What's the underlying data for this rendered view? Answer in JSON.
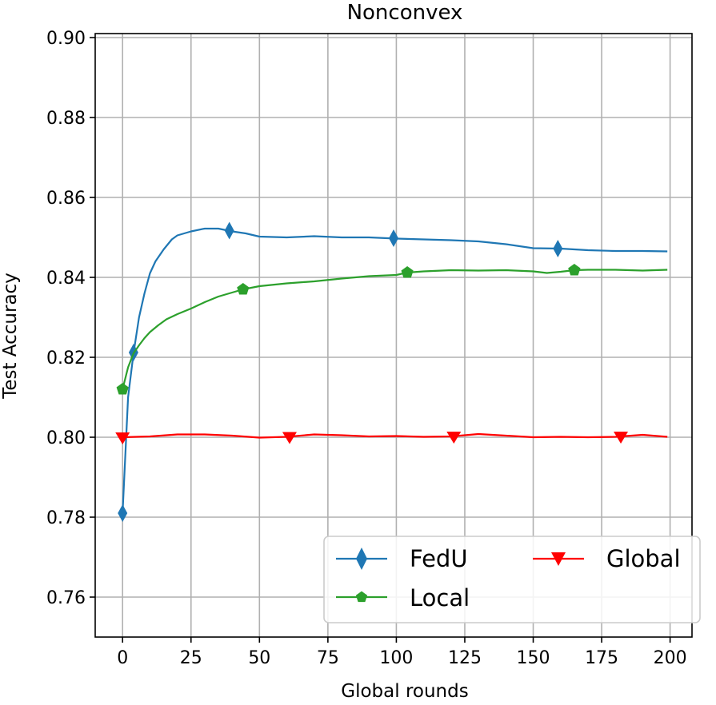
{
  "chart_data": {
    "type": "line",
    "title": "Nonconvex",
    "xlabel": "Global rounds",
    "ylabel": "Test Accuracy",
    "xlim": [
      -10,
      208
    ],
    "ylim": [
      0.75,
      0.901
    ],
    "xticks": [
      0,
      25,
      50,
      75,
      100,
      125,
      150,
      175,
      200
    ],
    "yticks": [
      0.76,
      0.78,
      0.8,
      0.82,
      0.84,
      0.86,
      0.88,
      0.9
    ],
    "xtick_labels": [
      "0",
      "25",
      "50",
      "75",
      "100",
      "125",
      "150",
      "175",
      "200"
    ],
    "ytick_labels": [
      "0.76",
      "0.78",
      "0.80",
      "0.82",
      "0.84",
      "0.86",
      "0.88",
      "0.90"
    ],
    "grid": true,
    "legend_position": "lower-right",
    "series": [
      {
        "name": "FedU",
        "color": "#1f77b4",
        "marker": "thin-diamond",
        "x": [
          0,
          2,
          4,
          6,
          8,
          10,
          12,
          15,
          18,
          20,
          25,
          30,
          35,
          40,
          45,
          50,
          60,
          70,
          80,
          90,
          100,
          110,
          120,
          130,
          140,
          150,
          160,
          170,
          180,
          190,
          199
        ],
        "y": [
          0.781,
          0.81,
          0.821,
          0.83,
          0.836,
          0.841,
          0.844,
          0.847,
          0.8495,
          0.8505,
          0.8515,
          0.8522,
          0.8522,
          0.8515,
          0.851,
          0.8502,
          0.85,
          0.8503,
          0.85,
          0.85,
          0.8497,
          0.8495,
          0.8493,
          0.849,
          0.8483,
          0.8473,
          0.8472,
          0.8468,
          0.8466,
          0.8466,
          0.8465
        ],
        "marker_x": [
          0,
          4,
          39,
          99,
          159
        ],
        "marker_y": [
          0.781,
          0.8212,
          0.8517,
          0.8498,
          0.8472
        ]
      },
      {
        "name": "Local",
        "color": "#2ca02c",
        "marker": "pentagon",
        "x": [
          0,
          2,
          4,
          6,
          8,
          10,
          13,
          16,
          20,
          25,
          30,
          35,
          40,
          44,
          50,
          60,
          70,
          80,
          90,
          100,
          104,
          110,
          120,
          130,
          140,
          150,
          155,
          160,
          165,
          170,
          180,
          190,
          199
        ],
        "y": [
          0.812,
          0.8175,
          0.821,
          0.823,
          0.8248,
          0.8263,
          0.828,
          0.8295,
          0.8308,
          0.8322,
          0.8338,
          0.8352,
          0.8362,
          0.837,
          0.8378,
          0.8385,
          0.839,
          0.8397,
          0.8403,
          0.8406,
          0.8412,
          0.8415,
          0.8418,
          0.8417,
          0.8418,
          0.8415,
          0.8411,
          0.8414,
          0.8418,
          0.8419,
          0.8419,
          0.8417,
          0.8419
        ],
        "marker_x": [
          0,
          44,
          104,
          165
        ],
        "marker_y": [
          0.812,
          0.837,
          0.8412,
          0.8418
        ]
      },
      {
        "name": "Global",
        "color": "#ff0000",
        "marker": "triangle-down",
        "x": [
          0,
          10,
          20,
          30,
          40,
          50,
          60,
          70,
          80,
          90,
          100,
          110,
          120,
          130,
          140,
          150,
          160,
          170,
          180,
          190,
          199
        ],
        "y": [
          0.8,
          0.8002,
          0.8007,
          0.8007,
          0.8004,
          0.7999,
          0.8001,
          0.8007,
          0.8005,
          0.8002,
          0.8003,
          0.8001,
          0.8002,
          0.8008,
          0.8004,
          0.8,
          0.8001,
          0.8,
          0.8001,
          0.8006,
          0.8001
        ],
        "marker_x": [
          0,
          61,
          121,
          182
        ],
        "marker_y": [
          0.8,
          0.8001,
          0.8002,
          0.8002
        ]
      }
    ]
  }
}
